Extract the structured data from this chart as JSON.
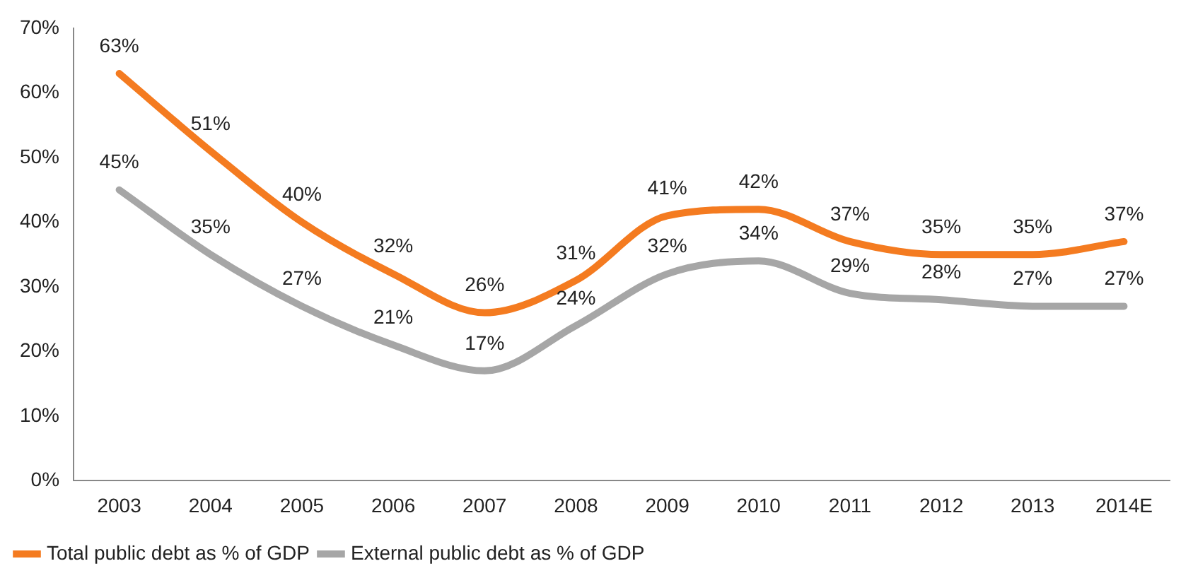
{
  "chart_data": {
    "type": "line",
    "categories": [
      "2003",
      "2004",
      "2005",
      "2006",
      "2007",
      "2008",
      "2009",
      "2010",
      "2011",
      "2012",
      "2013",
      "2014E"
    ],
    "series": [
      {
        "name": "Total public debt as % of GDP",
        "color": "#f47b20",
        "values": [
          63,
          51,
          40,
          32,
          26,
          31,
          41,
          42,
          37,
          35,
          35,
          37
        ],
        "value_labels": [
          "63%",
          "51%",
          "40%",
          "32%",
          "26%",
          "31%",
          "41%",
          "42%",
          "37%",
          "35%",
          "35%",
          "37%"
        ]
      },
      {
        "name": "External public debt as % of GDP",
        "color": "#a6a6a6",
        "values": [
          45,
          35,
          27,
          21,
          17,
          24,
          32,
          34,
          29,
          28,
          27,
          27
        ],
        "value_labels": [
          "45%",
          "35%",
          "27%",
          "21%",
          "17%",
          "24%",
          "32%",
          "34%",
          "29%",
          "28%",
          "27%",
          "27%"
        ]
      }
    ],
    "ylim": [
      0,
      70
    ],
    "yticks": [
      {
        "value": 0,
        "label": "0%"
      },
      {
        "value": 10,
        "label": "10%"
      },
      {
        "value": 20,
        "label": "20%"
      },
      {
        "value": 30,
        "label": "30%"
      },
      {
        "value": 40,
        "label": "40%"
      },
      {
        "value": 50,
        "label": "50%"
      },
      {
        "value": 60,
        "label": "60%"
      },
      {
        "value": 70,
        "label": "70%"
      }
    ],
    "grid": false,
    "legend": "bottom left",
    "marker": "none",
    "line_style": "solid"
  }
}
